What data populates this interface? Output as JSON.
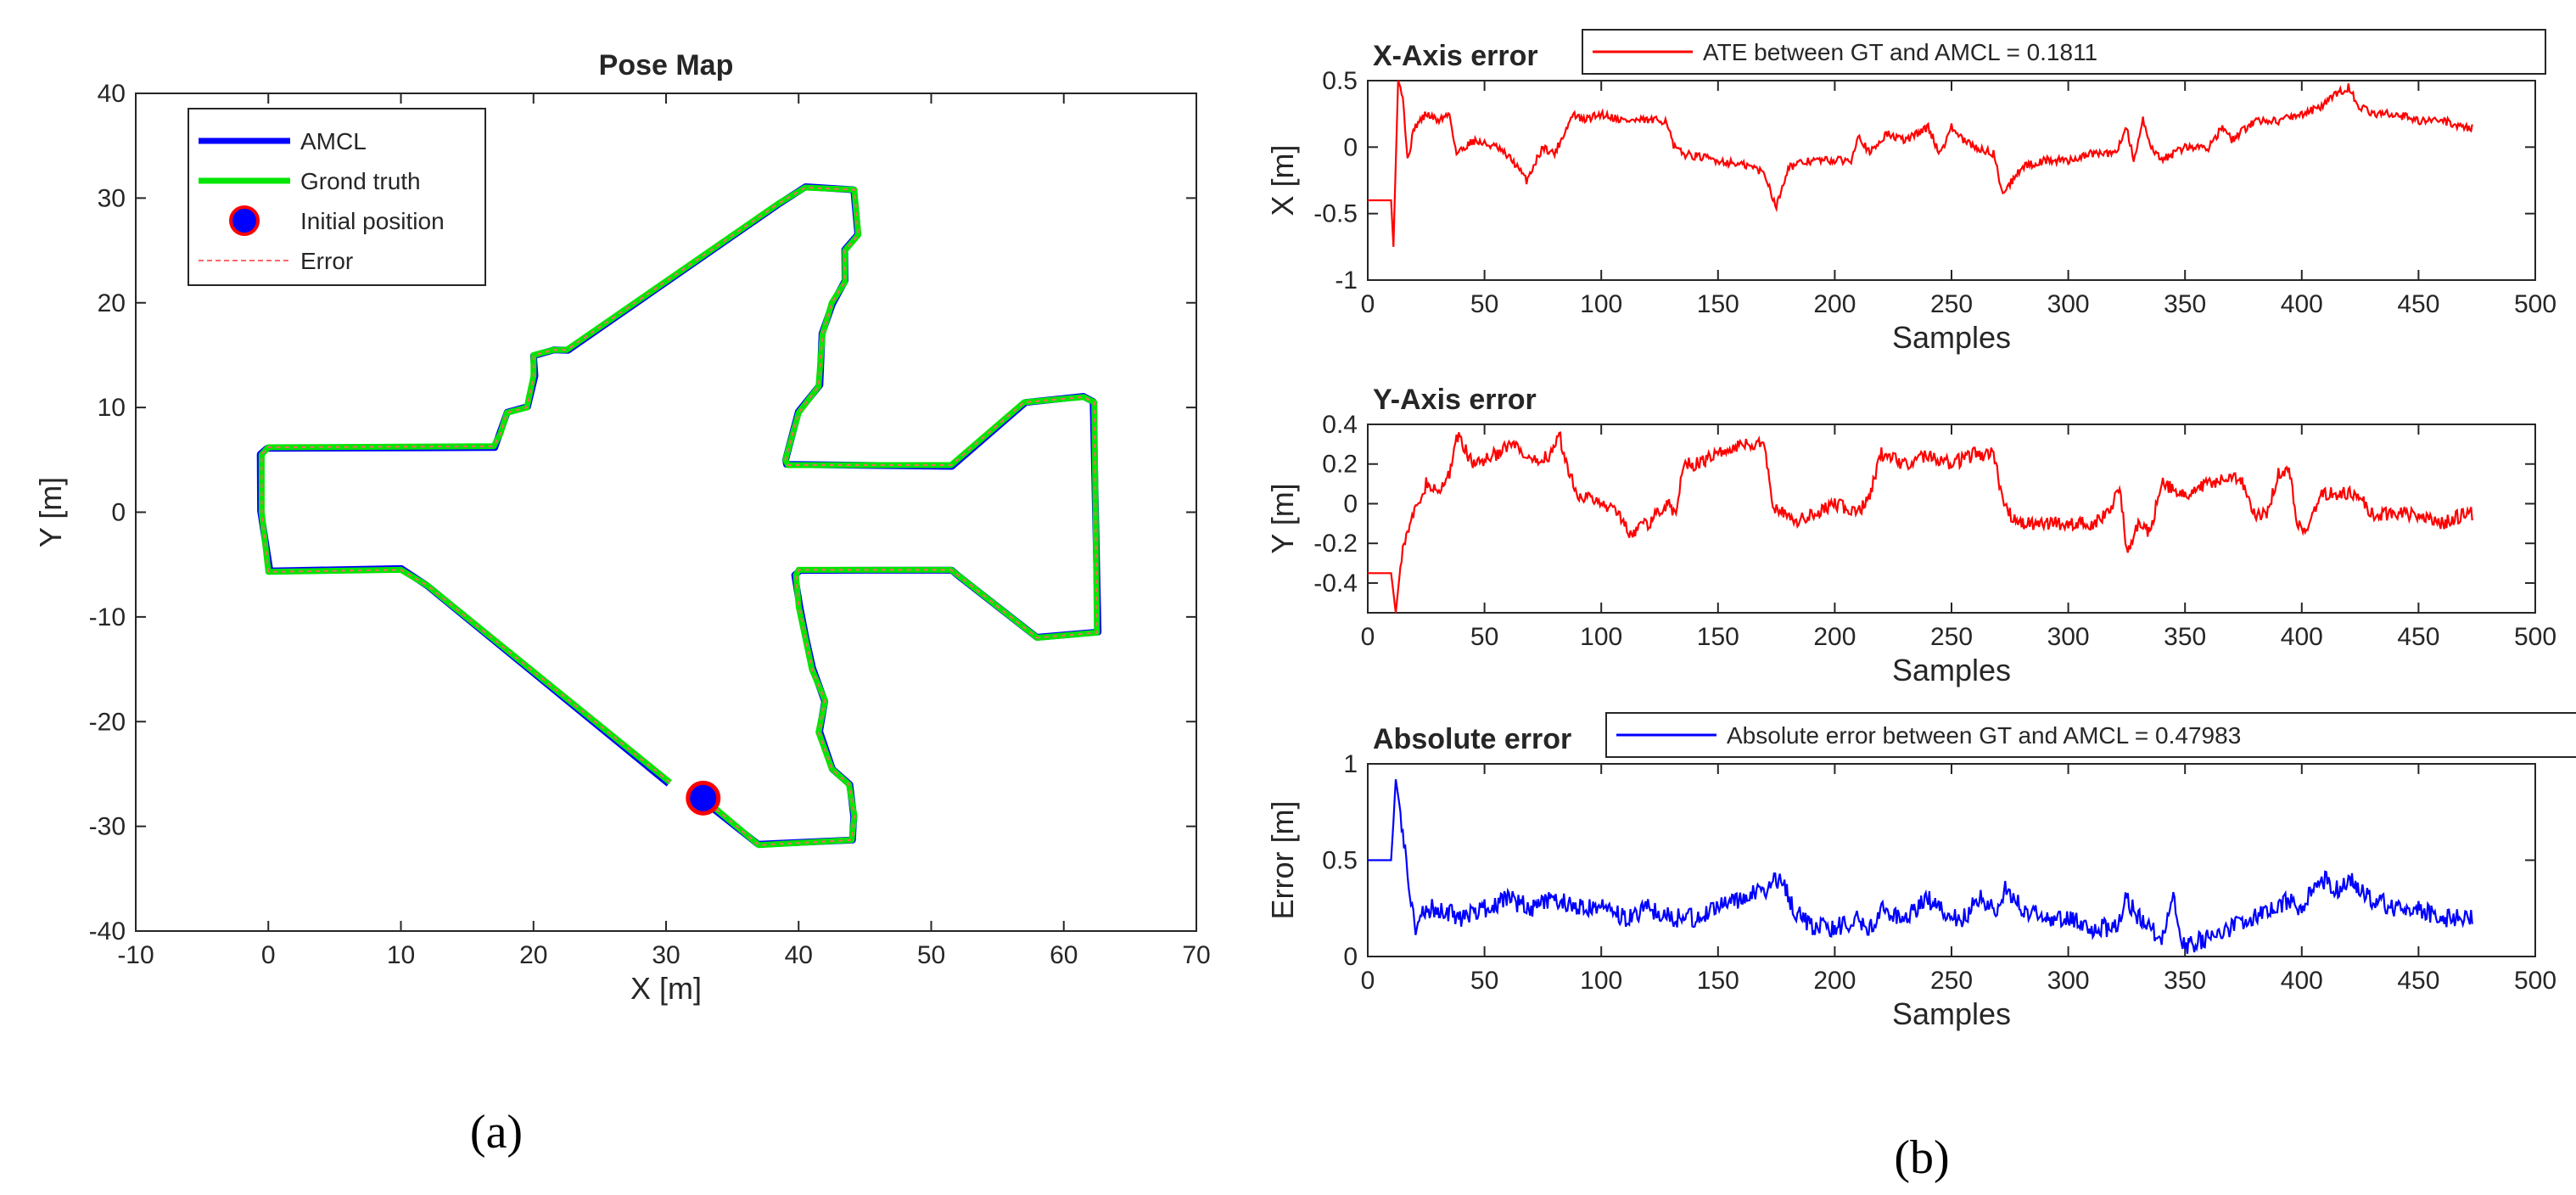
{
  "panel_labels": [
    "(a)",
    "(b)"
  ],
  "colors": {
    "amcl": "#0000ff",
    "ground_truth": "#00e600",
    "initial_fill": "#0000ff",
    "initial_edge": "#ff0000",
    "error_line": "#ff6666",
    "x_error": "#ff0000",
    "y_error": "#ff0000",
    "abs_error": "#0000ff",
    "axis": "#262626"
  },
  "chart_data": [
    {
      "id": "pose-map",
      "type": "line",
      "title": "Pose Map",
      "xlabel": "X [m]",
      "ylabel": "Y [m]",
      "xlim": [
        -10,
        70
      ],
      "ylim": [
        -40,
        40
      ],
      "xticks": [
        -10,
        0,
        10,
        20,
        30,
        40,
        50,
        60,
        70
      ],
      "yticks": [
        -40,
        -30,
        -20,
        -10,
        0,
        10,
        20,
        30,
        40
      ],
      "legend": [
        "AMCL",
        "Grond truth",
        "Initial position",
        "Error"
      ],
      "legend_position": "top-left",
      "initial_position": [
        32.8,
        -27.3
      ],
      "path": [
        [
          32.8,
          -27.3
        ],
        [
          37,
          -31.8
        ],
        [
          44,
          -31.3
        ],
        [
          44.2,
          -29
        ],
        [
          43.8,
          -26
        ],
        [
          42.5,
          -24.5
        ],
        [
          41.5,
          -21
        ],
        [
          42,
          -18
        ],
        [
          41,
          -15
        ],
        [
          40.5,
          -12
        ],
        [
          40,
          -9
        ],
        [
          39.8,
          -6
        ],
        [
          40,
          -5.5
        ],
        [
          51.5,
          -5.5
        ],
        [
          52,
          -6
        ],
        [
          58,
          -12
        ],
        [
          62.5,
          -11.5
        ],
        [
          62.3,
          10.5
        ],
        [
          61.5,
          11
        ],
        [
          57,
          10.5
        ],
        [
          51.5,
          4.5
        ],
        [
          39.2,
          4.5
        ],
        [
          39,
          5
        ],
        [
          40,
          9.5
        ],
        [
          41.5,
          12
        ],
        [
          41.8,
          17
        ],
        [
          42.5,
          20
        ],
        [
          43.5,
          22
        ],
        [
          43.5,
          25
        ],
        [
          44.5,
          26.5
        ],
        [
          44.2,
          30.8
        ],
        [
          40.5,
          31
        ],
        [
          38.5,
          29.5
        ],
        [
          22.5,
          15.5
        ],
        [
          21.5,
          15.5
        ],
        [
          20,
          15
        ],
        [
          20,
          13
        ],
        [
          19.5,
          10
        ],
        [
          18,
          9.5
        ],
        [
          17.5,
          7.5
        ],
        [
          17,
          6.3
        ],
        [
          0,
          6.2
        ],
        [
          -0.5,
          5.5
        ],
        [
          -0.5,
          0
        ],
        [
          0,
          -5.7
        ],
        [
          10,
          -5.5
        ],
        [
          12,
          -7
        ],
        [
          30.3,
          -25.8
        ]
      ]
    },
    {
      "id": "x-axis-error",
      "type": "line",
      "title": "X-Axis error",
      "xlabel": "Samples",
      "ylabel": "X [m]",
      "xlim": [
        0,
        500
      ],
      "ylim": [
        -1,
        0.5
      ],
      "xticks": [
        0,
        50,
        100,
        150,
        200,
        250,
        300,
        350,
        400,
        450,
        500
      ],
      "yticks": [
        -1,
        -0.5,
        0,
        0.5
      ],
      "legend": [
        "ATE between GT and AMCL = 0.1811"
      ],
      "legend_position": "top",
      "x": [
        0,
        10,
        11,
        13,
        15,
        17,
        20,
        25,
        30,
        35,
        38,
        45,
        55,
        62,
        68,
        75,
        80,
        88,
        92,
        100,
        110,
        120,
        128,
        131,
        135,
        150,
        165,
        170,
        175,
        180,
        190,
        200,
        207,
        210,
        215,
        222,
        230,
        235,
        240,
        245,
        250,
        255,
        260,
        268,
        272,
        280,
        290,
        300,
        310,
        320,
        325,
        328,
        332,
        335,
        340,
        345,
        350,
        360,
        366,
        370,
        380,
        390,
        400,
        408,
        415,
        420,
        425,
        430,
        440,
        450,
        460,
        470,
        473
      ],
      "y": [
        -0.4,
        -0.4,
        -0.75,
        0.5,
        0.4,
        -0.1,
        0.15,
        0.25,
        0.2,
        0.25,
        -0.05,
        0.05,
        0,
        -0.1,
        -0.25,
        0,
        -0.05,
        0.25,
        0.2,
        0.25,
        0.2,
        0.2,
        0.2,
        0,
        -0.05,
        -0.1,
        -0.15,
        -0.2,
        -0.45,
        -0.15,
        -0.1,
        -0.1,
        -0.1,
        0.1,
        -0.05,
        0.1,
        0.05,
        0.1,
        0.15,
        -0.05,
        0.15,
        0.05,
        0,
        -0.05,
        -0.35,
        -0.15,
        -0.1,
        -0.1,
        -0.05,
        -0.05,
        0.15,
        -0.1,
        0.2,
        0,
        -0.1,
        -0.05,
        0,
        0,
        0.15,
        0.05,
        0.2,
        0.2,
        0.25,
        0.3,
        0.4,
        0.45,
        0.3,
        0.25,
        0.25,
        0.2,
        0.2,
        0.15,
        0.15
      ]
    },
    {
      "id": "y-axis-error",
      "type": "line",
      "title": "Y-Axis error",
      "xlabel": "Samples",
      "ylabel": "Y [m]",
      "xlim": [
        0,
        500
      ],
      "ylim": [
        -0.55,
        0.4
      ],
      "xticks": [
        0,
        50,
        100,
        150,
        200,
        250,
        300,
        350,
        400,
        450,
        500
      ],
      "yticks": [
        -0.4,
        -0.2,
        0,
        0.2,
        0.4
      ],
      "legend": [],
      "x": [
        0,
        10,
        12,
        15,
        20,
        25,
        30,
        35,
        38,
        45,
        55,
        62,
        70,
        78,
        82,
        85,
        90,
        100,
        108,
        112,
        120,
        128,
        132,
        135,
        140,
        150,
        160,
        165,
        170,
        173,
        178,
        183,
        190,
        200,
        210,
        215,
        220,
        230,
        240,
        250,
        260,
        268,
        272,
        278,
        282,
        290,
        300,
        310,
        318,
        322,
        325,
        330,
        335,
        340,
        350,
        360,
        370,
        375,
        380,
        385,
        390,
        395,
        398,
        402,
        408,
        415,
        425,
        430,
        440,
        450,
        460,
        470,
        473
      ],
      "y": [
        -0.35,
        -0.35,
        -0.55,
        -0.2,
        -0.05,
        0.1,
        0.05,
        0.15,
        0.35,
        0.2,
        0.25,
        0.3,
        0.2,
        0.25,
        0.35,
        0.2,
        0.05,
        0,
        -0.05,
        -0.15,
        -0.1,
        0,
        -0.05,
        0.2,
        0.2,
        0.25,
        0.3,
        0.3,
        0.3,
        0,
        -0.05,
        -0.1,
        -0.05,
        0,
        -0.05,
        0.05,
        0.25,
        0.2,
        0.25,
        0.2,
        0.25,
        0.25,
        0,
        -0.1,
        -0.1,
        -0.1,
        -0.1,
        -0.1,
        -0.05,
        0.1,
        -0.25,
        -0.1,
        -0.15,
        0.1,
        0.05,
        0.1,
        0.15,
        0.1,
        -0.05,
        -0.05,
        0.15,
        0.15,
        -0.1,
        -0.15,
        0.05,
        0.05,
        0.05,
        -0.05,
        -0.05,
        -0.05,
        -0.1,
        -0.05,
        -0.05
      ]
    },
    {
      "id": "absolute-error",
      "type": "line",
      "title": "Absolute error",
      "xlabel": "Samples",
      "ylabel": "Error [m]",
      "xlim": [
        0,
        500
      ],
      "ylim": [
        0,
        1
      ],
      "xticks": [
        0,
        50,
        100,
        150,
        200,
        250,
        300,
        350,
        400,
        450,
        500
      ],
      "yticks": [
        0,
        0.5,
        1
      ],
      "legend": [
        "Absolute error between GT and AMCL = 0.47983"
      ],
      "legend_position": "top",
      "x": [
        0,
        10,
        11,
        12,
        14,
        16,
        20,
        25,
        30,
        40,
        50,
        60,
        70,
        80,
        90,
        100,
        110,
        120,
        130,
        140,
        150,
        160,
        170,
        175,
        178,
        182,
        190,
        200,
        210,
        215,
        220,
        230,
        240,
        250,
        255,
        262,
        270,
        273,
        280,
        290,
        300,
        310,
        320,
        325,
        330,
        335,
        340,
        345,
        348,
        350,
        360,
        370,
        380,
        390,
        395,
        400,
        405,
        410,
        415,
        420,
        425,
        430,
        440,
        450,
        460,
        470,
        473
      ],
      "y": [
        0.5,
        0.5,
        0.7,
        0.92,
        0.75,
        0.55,
        0.15,
        0.25,
        0.25,
        0.2,
        0.25,
        0.3,
        0.25,
        0.3,
        0.25,
        0.25,
        0.2,
        0.25,
        0.2,
        0.2,
        0.25,
        0.3,
        0.35,
        0.4,
        0.4,
        0.25,
        0.15,
        0.15,
        0.2,
        0.15,
        0.25,
        0.2,
        0.3,
        0.2,
        0.2,
        0.3,
        0.25,
        0.35,
        0.25,
        0.2,
        0.2,
        0.15,
        0.15,
        0.3,
        0.2,
        0.15,
        0.1,
        0.3,
        0.1,
        0.05,
        0.1,
        0.15,
        0.2,
        0.25,
        0.3,
        0.25,
        0.35,
        0.4,
        0.35,
        0.4,
        0.35,
        0.3,
        0.25,
        0.25,
        0.2,
        0.2,
        0.2
      ]
    }
  ]
}
